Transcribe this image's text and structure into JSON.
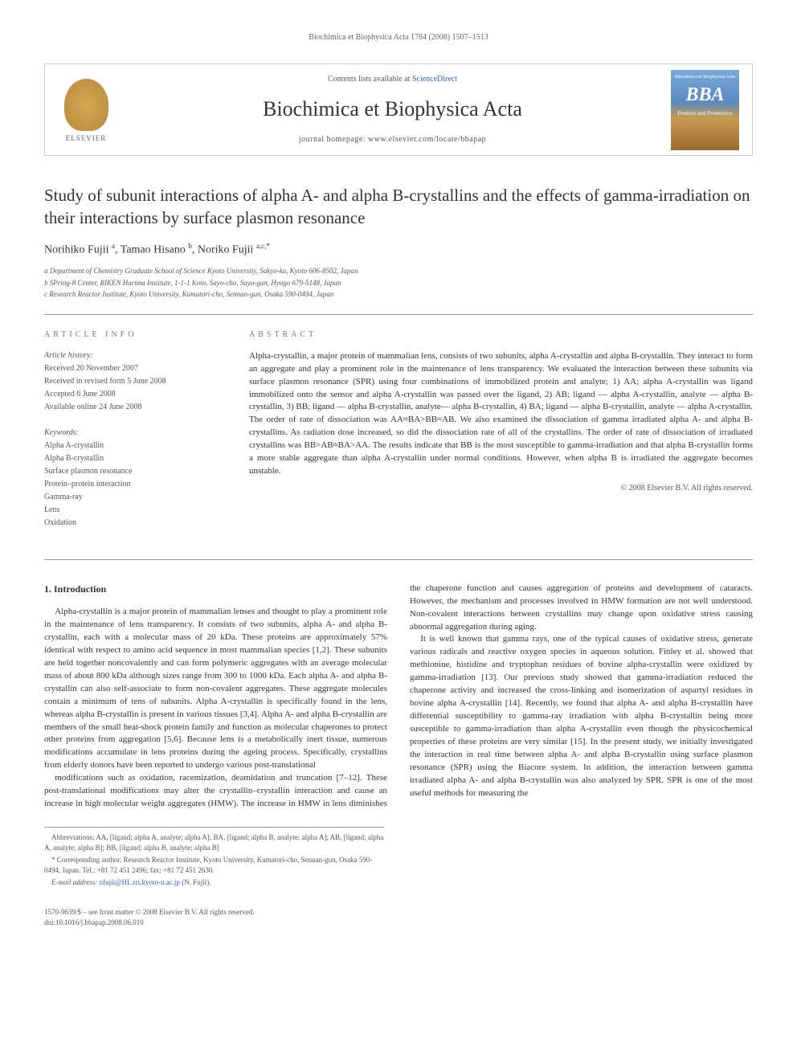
{
  "running_header": "Biochimica et Biophysica Acta 1784 (2008) 1507–1513",
  "header": {
    "contents_prefix": "Contents lists available at ",
    "contents_link": "ScienceDirect",
    "journal_name": "Biochimica et Biophysica Acta",
    "homepage_label": "journal homepage: ",
    "homepage_url": "www.elsevier.com/locate/bbapap",
    "elsevier_label": "ELSEVIER",
    "bba_top": "Biochimica et Biophysica Acta",
    "bba_big": "BBA",
    "bba_sub": "Proteins and Proteomics"
  },
  "title": "Study of subunit interactions of alpha A- and alpha B-crystallins and the effects of gamma-irradiation on their interactions by surface plasmon resonance",
  "authors_html": "Norihiko Fujii <sup>a</sup>, Tamao Hisano <sup>b</sup>, Noriko Fujii <sup>a,c,*</sup>",
  "affiliations": [
    "a Department of Chemistry Graduate School of Science Kyoto University, Sakyo-ku, Kyoto 606-8502, Japan",
    "b SPring-8 Center, RIKEN Harima Institute, 1-1-1 Koto, Sayo-cho, Sayo-gun, Hyogo 679-5148, Japan",
    "c Research Reactor Institute, Kyoto University, Kumatori-cho, Sennan-gun, Osaka 590-0494, Japan"
  ],
  "article_info": {
    "heading": "ARTICLE INFO",
    "history_heading": "Article history:",
    "history": [
      "Received 20 November 2007",
      "Received in revised form 5 June 2008",
      "Accepted 6 June 2008",
      "Available online 24 June 2008"
    ],
    "keywords_heading": "Keywords:",
    "keywords": [
      "Alpha A-crystallin",
      "Alpha B-crystallin",
      "Surface plasmon resonance",
      "Protein–protein interaction",
      "Gamma-ray",
      "Lens",
      "Oxidation"
    ]
  },
  "abstract": {
    "heading": "ABSTRACT",
    "text": "Alpha-crystallin, a major protein of mammalian lens, consists of two subunits, alpha A-crystallin and alpha B-crystallin. They interact to form an aggregate and play a prominent role in the maintenance of lens transparency. We evaluated the interaction between these subunits via surface plasmon resonance (SPR) using four combinations of immobilized protein and analyte; 1) AA; alpha A-crystallin was ligand immobilized onto the sensor and alpha A-crystallin was passed over the ligand, 2) AB; ligand — alpha A-crystallin, analyte — alpha B-crystallin, 3) BB; ligand — alpha B-crystallin, analyte— alpha B-crystallin, 4) BA; ligand — alpha B-crystallin, analyte — alpha A-crystallin. The order of rate of dissociation was AA≈BA>BB≈AB. We also examined the dissociation of gamma irradiated alpha A- and alpha B-crystallins. As radiation dose increased, so did the dissociation rate of all of the crystallins. The order of rate of dissociation of irradiated crystallins was BB>AB≈BA>AA. The results indicate that BB is the most susceptible to gamma-irradiation and that alpha B-crystallin forms a more stable aggregate than alpha A-crystallin under normal conditions. However, when alpha B is irradiated the aggregate becomes unstable.",
    "copyright": "© 2008 Elsevier B.V. All rights reserved."
  },
  "intro": {
    "heading": "1. Introduction",
    "p1": "Alpha-crystallin is a major protein of mammalian lenses and thought to play a prominent role in the maintenance of lens transparency. It consists of two subunits, alpha A- and alpha B-crystallin, each with a molecular mass of 20 kDa. These proteins are approximately 57% identical with respect to amino acid sequence in most mammalian species [1,2]. These subunits are held together noncovalently and can form polymeric aggregates with an average molecular mass of about 800 kDa although sizes range from 300 to 1000 kDa. Each alpha A- and alpha B-crystallin can also self-associate to form non-covalent aggregates. These aggregate molecules contain a minimum of tens of subunits. Alpha A-crystallin is specifically found in the lens, whereas alpha B-crystallin is present in various tissues [3,4]. Alpha A- and alpha B-crystallin are members of the small heat-shock protein family and function as molecular chaperones to protect other proteins from aggregation [5,6]. Because lens is a metabolically inert tissue, numerous modifications accumulate in lens proteins during the ageing process. Specifically, crystallins from elderly donors have been reported to undergo various post-translational",
    "p2": "modifications such as oxidation, racemization, deamidation and truncation [7–12]. These post-translational modifications may alter the crystallin–crystallin interaction and cause an increase in high molecular weight aggregates (HMW). The increase in HMW in lens diminishes the chaperone function and causes aggregation of proteins and development of cataracts. However, the mechanism and processes involved in HMW formation are not well understood. Non-covalent interactions between crystallins may change upon oxidative stress causing abnormal aggregation during aging.",
    "p3": "It is well known that gamma rays, one of the typical causes of oxidative stress, generate various radicals and reactive oxygen species in aqueous solution. Finley et al. showed that methionine, histidine and tryptophan residues of bovine alpha-crystallin were oxidized by gamma-irradiation [13]. Our previous study showed that gamma-irradiation reduced the chaperone activity and increased the cross-linking and isomerization of aspartyl residues in bovine alpha A-crystallin [14]. Recently, we found that alpha A- and alpha B-crystallin have differential susceptibility to gamma-ray irradiation with alpha B-crystallin being more susceptible to gamma-irradiation than alpha A-crystallin even though the physicochemical properties of these proteins are very similar [15]. In the present study, we initially investigated the interaction in real time between alpha A- and alpha B-crystallin using surface plasmon resonance (SPR) using the Biacore system. In addition, the interaction between gamma irradiated alpha A- and alpha B-crystallin was also analyzed by SPR. SPR is one of the most useful methods for measuring the"
  },
  "footnotes": {
    "abbrev": "Abbreviations: AA, [ligand; alpha A, analyte; alpha A]; BA, [ligand; alpha B, analyte; alpha A]; AB, [ligand; alpha A, analyte; alpha B]; BB, [ligand; alpha B, analyte; alpha B]",
    "corresponding": "* Corresponding author. Research Reactor Institute, Kyoto University, Kumatori-cho, Sennan-gun, Osaka 590-0494, Japan. Tel.: +81 72 451 2496; fax: +81 72 451 2630.",
    "email_label": "E-mail address: ",
    "email": "nfujii@HL.rri.kyoto-u.ac.jp",
    "email_suffix": " (N. Fujii)."
  },
  "page_footer": {
    "left_line1": "1570-9639/$ – see front matter © 2008 Elsevier B.V. All rights reserved.",
    "left_line2": "doi:10.1016/j.bbapap.2008.06.010"
  }
}
